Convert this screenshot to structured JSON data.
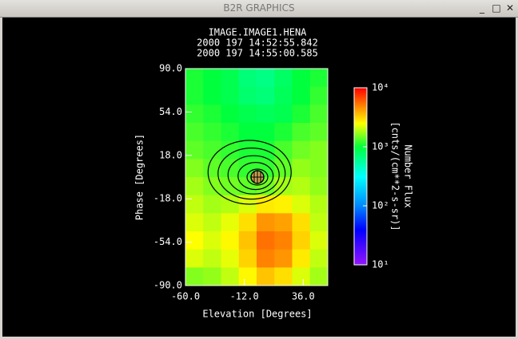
{
  "window": {
    "title": "B2R GRAPHICS"
  },
  "chart_data": {
    "type": "heatmap",
    "title": "IMAGE.IMAGE1.HENA",
    "subtitles": [
      "2000 197 14:52:55.842",
      "2000 197 14:55:00.585"
    ],
    "x_label": "Elevation   [Degrees]",
    "y_label": "Phase   [Degrees]",
    "xlim": [
      -60,
      56
    ],
    "xticks": [
      {
        "value": -60,
        "label": "-60.0"
      },
      {
        "value": -12,
        "label": "-12.0"
      },
      {
        "value": 36,
        "label": "36.0"
      }
    ],
    "ylim": [
      -90,
      90
    ],
    "yticks": [
      {
        "value": 90,
        "label": "90.0"
      },
      {
        "value": 54,
        "label": "54.0"
      },
      {
        "value": 18,
        "label": "18.0"
      },
      {
        "value": -18,
        "label": "-18.0"
      },
      {
        "value": -54,
        "label": "-54.0"
      },
      {
        "value": -90,
        "label": "-90.0"
      }
    ],
    "z": [
      [
        1100,
        1000,
        900,
        700,
        650,
        800,
        1000,
        1100
      ],
      [
        1100,
        1000,
        900,
        750,
        700,
        850,
        1000,
        1200
      ],
      [
        1200,
        1100,
        1000,
        900,
        850,
        900,
        1100,
        1300
      ],
      [
        1300,
        1200,
        1100,
        1000,
        1000,
        1100,
        1300,
        1400
      ],
      [
        1400,
        1300,
        1200,
        1100,
        1100,
        1300,
        1500,
        1600
      ],
      [
        1600,
        1400,
        1300,
        1200,
        1200,
        1400,
        1700,
        1600
      ],
      [
        1800,
        1600,
        1500,
        1400,
        1500,
        1800,
        1900,
        1700
      ],
      [
        2000,
        1800,
        1900,
        2200,
        2800,
        2700,
        2200,
        1900
      ],
      [
        2200,
        2000,
        2300,
        3000,
        4500,
        4200,
        3000,
        2000
      ],
      [
        2500,
        2200,
        2600,
        3500,
        5500,
        5000,
        3200,
        2200
      ],
      [
        2200,
        2000,
        2300,
        3200,
        5000,
        4500,
        2800,
        2000
      ],
      [
        1600,
        1700,
        2000,
        2600,
        3500,
        3000,
        2200,
        1800
      ]
    ],
    "colorbar": {
      "title": "Number Flux",
      "units": "[cnts/(cm**2-s-sr)]",
      "scale": "log",
      "lim": [
        10,
        10000
      ],
      "ticks": [
        {
          "value": 10000,
          "label": "10⁴"
        },
        {
          "value": 1000,
          "label": "10³"
        },
        {
          "value": 100,
          "label": "10²"
        },
        {
          "value": 10,
          "label": "10¹"
        }
      ]
    }
  }
}
